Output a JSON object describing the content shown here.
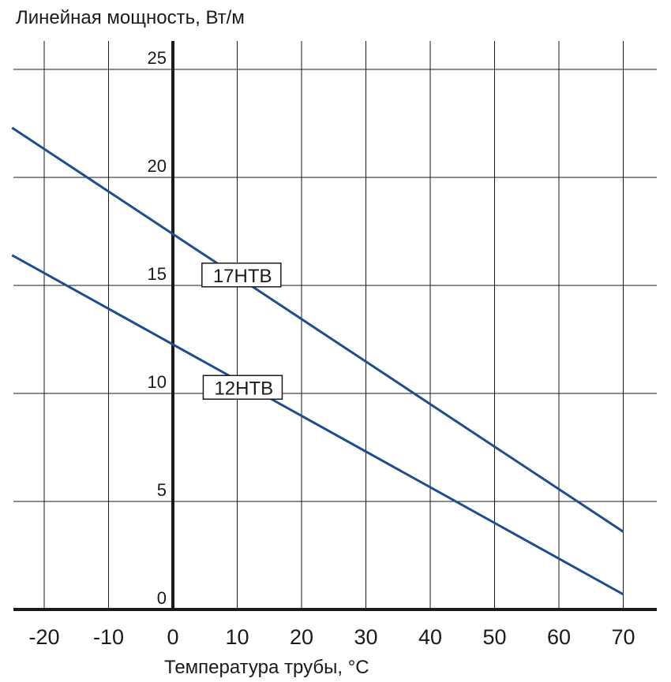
{
  "chart_data": {
    "type": "line",
    "ylabel": "Линейная мощность, Вт/м",
    "xlabel": "Температура трубы, °С",
    "xlim": [
      -25,
      75
    ],
    "ylim": [
      -0.5,
      27
    ],
    "x_ticks": [
      -20,
      -10,
      0,
      10,
      20,
      30,
      40,
      50,
      60,
      70
    ],
    "x_tick_labels": [
      "-20",
      "-10",
      "0",
      "10",
      "20",
      "30",
      "40",
      "50",
      "60",
      "70"
    ],
    "y_ticks": [
      0,
      5,
      10,
      15,
      20,
      25
    ],
    "y_tick_labels": [
      "0",
      "5",
      "10",
      "15",
      "20",
      "25"
    ],
    "grid": true,
    "series": [
      {
        "name": "17HTB",
        "x": [
          -25,
          70
        ],
        "y": [
          22.3,
          3.6
        ],
        "color": "#1f4e8f"
      },
      {
        "name": "12HTB",
        "x": [
          -25,
          70
        ],
        "y": [
          16.4,
          0.7
        ],
        "color": "#1f4e8f"
      }
    ]
  }
}
